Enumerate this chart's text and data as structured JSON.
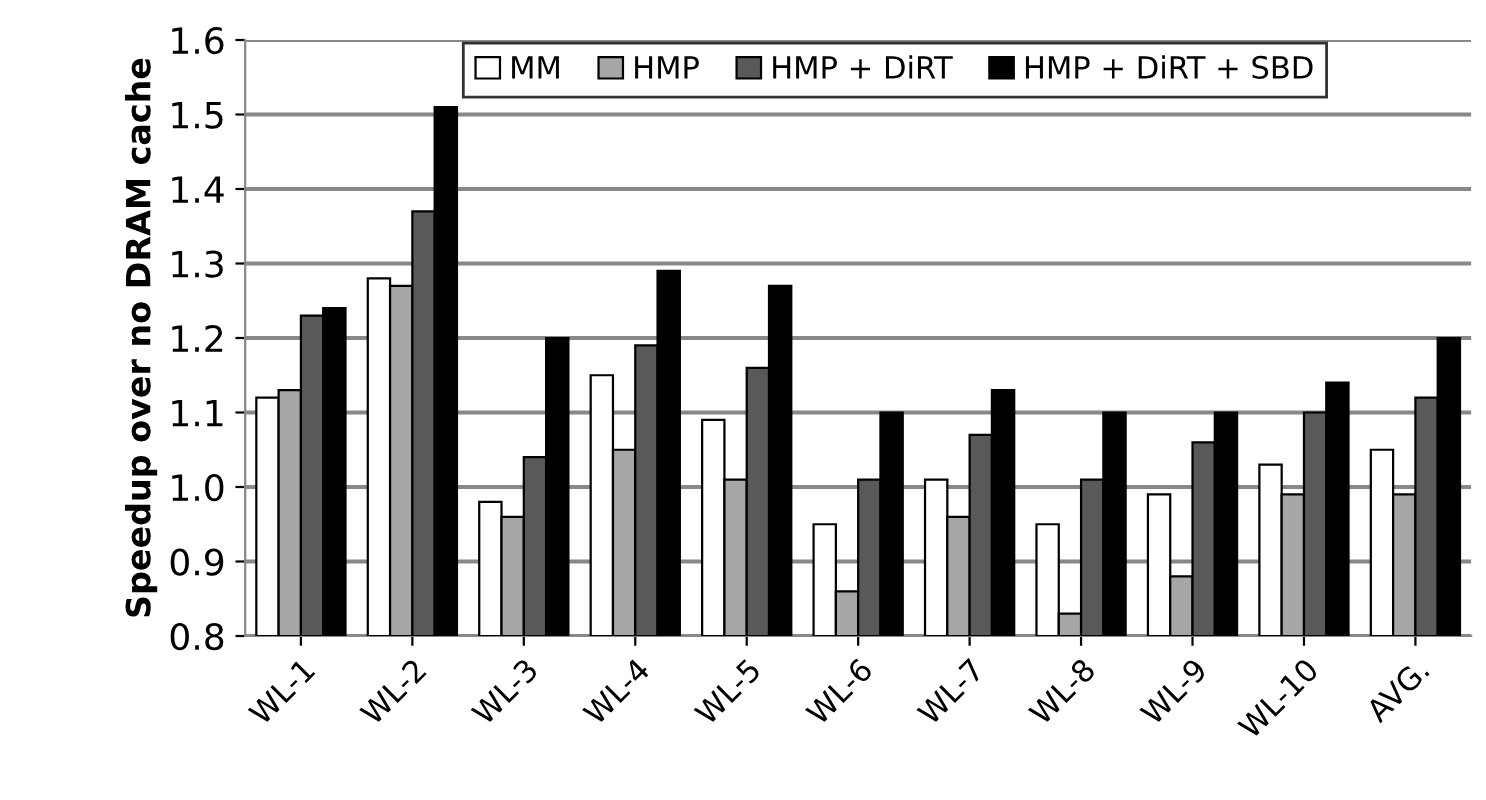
{
  "chart_data": {
    "type": "bar",
    "ylabel": "Speedup over no DRAM cache",
    "categories": [
      "WL-1",
      "WL-2",
      "WL-3",
      "WL-4",
      "WL-5",
      "WL-6",
      "WL-7",
      "WL-8",
      "WL-9",
      "WL-10",
      "AVG."
    ],
    "series": [
      {
        "name": "MM",
        "color": "#ffffff",
        "values": [
          1.12,
          1.28,
          0.98,
          1.15,
          1.09,
          0.95,
          1.01,
          0.95,
          0.99,
          1.03,
          1.05
        ]
      },
      {
        "name": "HMP",
        "color": "#a6a6a6",
        "values": [
          1.13,
          1.27,
          0.96,
          1.05,
          1.01,
          0.86,
          0.96,
          0.83,
          0.88,
          0.99,
          0.99
        ]
      },
      {
        "name": "HMP + DiRT",
        "color": "#595959",
        "values": [
          1.23,
          1.37,
          1.04,
          1.19,
          1.16,
          1.01,
          1.07,
          1.01,
          1.06,
          1.1,
          1.12
        ]
      },
      {
        "name": "HMP + DiRT + SBD",
        "color": "#000000",
        "values": [
          1.24,
          1.51,
          1.2,
          1.29,
          1.27,
          1.1,
          1.13,
          1.1,
          1.1,
          1.14,
          1.2
        ]
      }
    ],
    "ylim": [
      0.8,
      1.6
    ],
    "yticks": [
      0.8,
      0.9,
      {
        "value": 1,
        "label": "1.0"
      },
      1.1,
      1.2,
      1.3,
      1.4,
      1.5,
      1.6
    ],
    "grid": "y",
    "legend": "top"
  }
}
